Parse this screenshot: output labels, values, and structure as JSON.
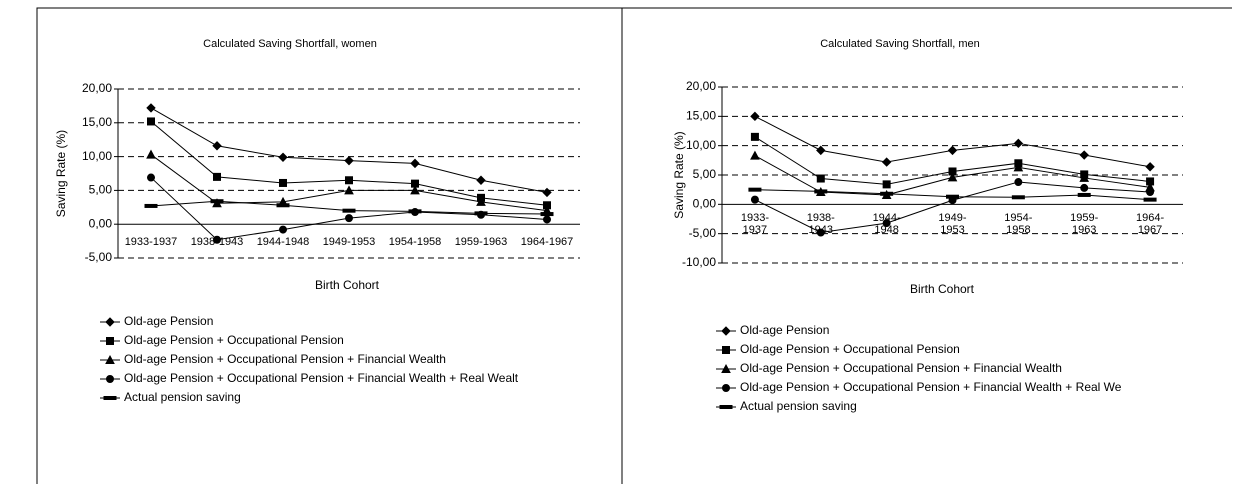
{
  "chart_data": [
    {
      "type": "line",
      "title": "Calculated Saving Shortfall, women",
      "x_label": "Birth Cohort",
      "y_label": "Saving Rate (%)",
      "categories": [
        "1933-1937",
        "1938-1943",
        "1944-1948",
        "1949-1953",
        "1954-1958",
        "1959-1963",
        "1964-1967"
      ],
      "ylim": [
        -5,
        20
      ],
      "yticks": [
        {
          "value": -5,
          "label": "-5,00"
        },
        {
          "value": 0,
          "label": "0,00"
        },
        {
          "value": 5,
          "label": "5,00"
        },
        {
          "value": 10,
          "label": "10,00"
        },
        {
          "value": 15,
          "label": "15,00"
        },
        {
          "value": 20,
          "label": "20,00"
        }
      ],
      "grid": true,
      "series": [
        {
          "name": "Old-age Pension",
          "color": "#000000",
          "marker": "diamond",
          "values": [
            17.2,
            11.6,
            9.9,
            9.4,
            9.0,
            6.5,
            4.7
          ]
        },
        {
          "name": "Old-age Pension + Occupational Pension",
          "color": "#000000",
          "marker": "square",
          "values": [
            15.2,
            7.0,
            6.1,
            6.5,
            6.0,
            3.9,
            2.8
          ]
        },
        {
          "name": "Old-age Pension + Occupational Pension + Financial Wealth",
          "color": "#000000",
          "marker": "triangle",
          "values": [
            10.3,
            3.1,
            3.3,
            5.0,
            5.0,
            3.3,
            2.0
          ]
        },
        {
          "name": "Old-age Pension + Occupational Pension + Financial Wealth + Real Wealt",
          "color": "#000000",
          "marker": "circle",
          "values": [
            6.9,
            -2.3,
            -0.8,
            0.9,
            1.8,
            1.4,
            0.7
          ]
        },
        {
          "name": "Actual pension saving",
          "color": "#000000",
          "marker": "dash",
          "values": [
            2.7,
            3.4,
            2.8,
            2.0,
            1.9,
            1.6,
            1.5
          ]
        }
      ]
    },
    {
      "type": "line",
      "title": "Calculated Saving Shortfall, men",
      "x_label": "Birth Cohort",
      "y_label": "Saving Rate (%)",
      "categories": [
        "1933-1937",
        "1938-1943",
        "1944-1948",
        "1949-1953",
        "1954-1958",
        "1959-1963",
        "1964-1967"
      ],
      "ylim": [
        -10,
        20
      ],
      "yticks": [
        {
          "value": -10,
          "label": "-10,00"
        },
        {
          "value": -5,
          "label": "-5,00"
        },
        {
          "value": 0,
          "label": "0,00"
        },
        {
          "value": 5,
          "label": "5,00"
        },
        {
          "value": 10,
          "label": "10,00"
        },
        {
          "value": 15,
          "label": "15,00"
        },
        {
          "value": 20,
          "label": "20,00"
        }
      ],
      "grid": true,
      "series": [
        {
          "name": "Old-age Pension",
          "color": "#000000",
          "marker": "diamond",
          "values": [
            15.0,
            9.2,
            7.2,
            9.2,
            10.4,
            8.4,
            6.4
          ]
        },
        {
          "name": "Old-age Pension + Occupational Pension",
          "color": "#000000",
          "marker": "square",
          "values": [
            11.5,
            4.4,
            3.4,
            5.6,
            7.0,
            5.1,
            3.9
          ]
        },
        {
          "name": "Old-age Pension + Occupational Pension + Financial Wealth",
          "color": "#000000",
          "marker": "triangle",
          "values": [
            8.3,
            2.1,
            1.6,
            4.6,
            6.3,
            4.5,
            2.9
          ]
        },
        {
          "name": "Old-age Pension + Occupational Pension + Financial Wealth + Real We",
          "color": "#000000",
          "marker": "circle",
          "values": [
            0.8,
            -4.8,
            -3.2,
            0.7,
            3.8,
            2.8,
            2.1
          ]
        },
        {
          "name": "Actual pension saving",
          "color": "#000000",
          "marker": "dash",
          "values": [
            2.5,
            2.2,
            1.8,
            1.3,
            1.2,
            1.6,
            0.8
          ]
        }
      ]
    }
  ]
}
